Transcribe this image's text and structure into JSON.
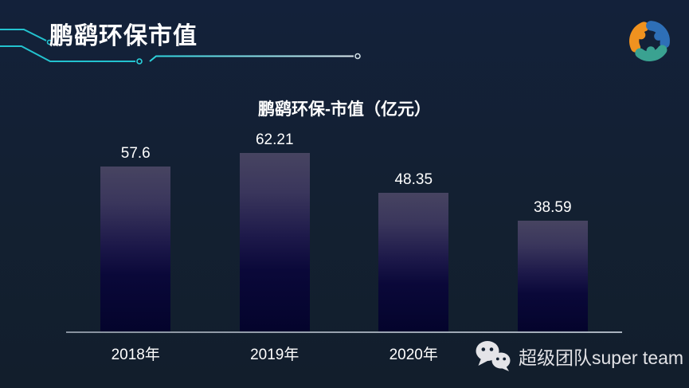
{
  "header": {
    "title": "鹏鹞环保市值"
  },
  "logo": {
    "name": "team-swirl-logo",
    "colors": {
      "orange": "#F0921F",
      "blue": "#2E6FB7",
      "teal": "#3AA291"
    }
  },
  "chart_data": {
    "type": "bar",
    "title": "鹏鹞环保-市值（亿元）",
    "categories": [
      "2018年",
      "2019年",
      "2020年",
      ""
    ],
    "values": [
      57.6,
      62.21,
      48.35,
      38.59
    ],
    "data_labels": [
      "57.6",
      "62.21",
      "48.35",
      "38.59"
    ],
    "xlabel": "",
    "ylabel": "",
    "ylim": [
      0,
      70
    ],
    "grid": false,
    "legend": false,
    "bar_gradient_top": "#474461",
    "bar_gradient_bottom": "#04042C",
    "axis_color": "#A9B3BF",
    "value_label_color": "#FFFFFF",
    "category_label_color": "#FFFFFF"
  },
  "watermark": {
    "icon": "wechat-icon",
    "text": "超级团队super team",
    "color": "#E2E2E6"
  },
  "theme": {
    "background": "#13203A",
    "accent_cyan": "#2AD2DC",
    "title_color": "#FFFFFF"
  }
}
